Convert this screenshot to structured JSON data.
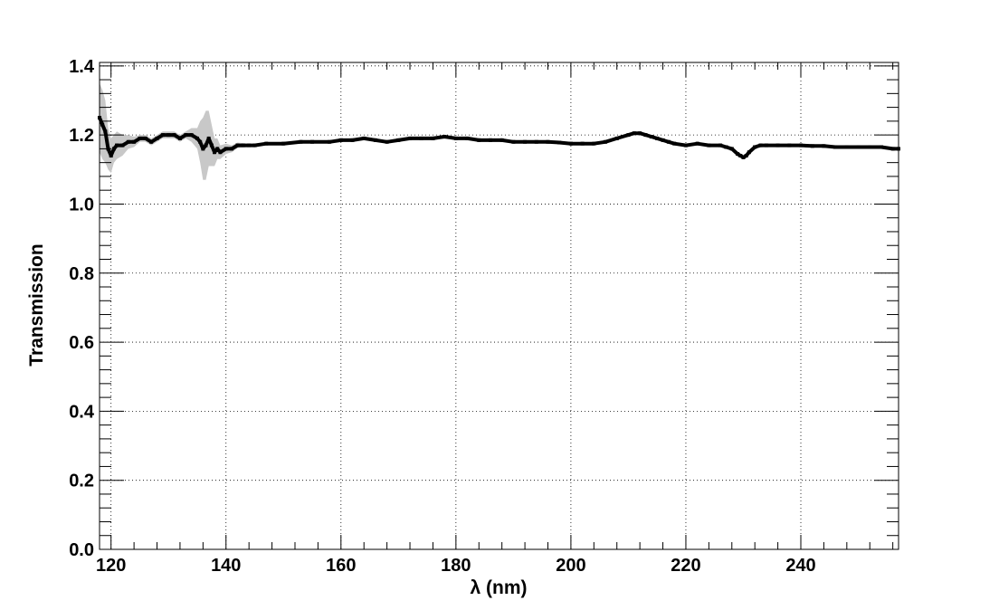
{
  "chart_data": {
    "type": "line",
    "title": "",
    "xlabel": "λ (nm)",
    "ylabel": "Transmission",
    "xlim": [
      118,
      257
    ],
    "ylim": [
      0,
      1.41
    ],
    "x_ticks": [
      "120",
      "140",
      "160",
      "180",
      "200",
      "220",
      "240"
    ],
    "y_ticks": [
      "0.0",
      "0.2",
      "0.4",
      "0.6",
      "0.8",
      "1.0",
      "1.2",
      "1.4"
    ],
    "grid": true,
    "legend": "none",
    "colors": {
      "data": "#000000",
      "error_band": "#c8c8c8"
    },
    "series": [
      {
        "x": [
          118,
          118.5,
          119,
          119.5,
          120,
          120.5,
          121,
          122,
          123,
          124,
          125,
          126,
          127,
          128,
          129,
          130,
          131,
          132,
          133,
          134,
          135,
          135.5,
          136,
          136.5,
          137,
          137.5,
          138,
          138.5,
          139,
          140,
          141,
          142,
          143,
          144,
          145,
          147,
          150,
          153,
          155,
          158,
          160,
          162,
          164,
          166,
          168,
          170,
          172,
          174,
          176,
          178,
          180,
          182,
          184,
          186,
          188,
          190,
          192,
          194,
          196,
          198,
          200,
          202,
          204,
          206,
          208,
          210,
          211,
          212,
          213,
          214,
          215,
          216,
          217,
          218,
          220,
          222,
          224,
          226,
          227,
          228,
          229,
          229.5,
          230,
          230.5,
          231,
          232,
          233,
          234,
          236,
          238,
          240,
          242,
          244,
          246,
          248,
          250,
          252,
          254,
          256,
          257
        ],
        "y": [
          1.25,
          1.23,
          1.21,
          1.16,
          1.14,
          1.16,
          1.17,
          1.17,
          1.18,
          1.18,
          1.19,
          1.19,
          1.18,
          1.19,
          1.2,
          1.2,
          1.2,
          1.19,
          1.2,
          1.2,
          1.19,
          1.18,
          1.16,
          1.17,
          1.19,
          1.17,
          1.15,
          1.16,
          1.15,
          1.16,
          1.16,
          1.17,
          1.17,
          1.17,
          1.17,
          1.175,
          1.175,
          1.18,
          1.18,
          1.18,
          1.185,
          1.185,
          1.19,
          1.185,
          1.18,
          1.185,
          1.19,
          1.19,
          1.19,
          1.195,
          1.19,
          1.19,
          1.185,
          1.185,
          1.185,
          1.18,
          1.18,
          1.18,
          1.18,
          1.178,
          1.175,
          1.175,
          1.175,
          1.18,
          1.19,
          1.2,
          1.205,
          1.205,
          1.2,
          1.195,
          1.19,
          1.185,
          1.18,
          1.175,
          1.17,
          1.175,
          1.17,
          1.17,
          1.165,
          1.16,
          1.145,
          1.14,
          1.135,
          1.14,
          1.15,
          1.165,
          1.17,
          1.17,
          1.17,
          1.17,
          1.17,
          1.168,
          1.168,
          1.165,
          1.165,
          1.165,
          1.165,
          1.165,
          1.16,
          1.16
        ],
        "err": [
          0.1,
          0.1,
          0.09,
          0.06,
          0.05,
          0.04,
          0.04,
          0.03,
          0.02,
          0.015,
          0.01,
          0.01,
          0.01,
          0.01,
          0.01,
          0.01,
          0.01,
          0.01,
          0.01,
          0.02,
          0.03,
          0.06,
          0.09,
          0.1,
          0.08,
          0.06,
          0.04,
          0.03,
          0.02,
          0.015,
          0.01,
          0.008,
          0.006,
          0.005,
          0.005,
          0.004,
          0.004,
          0.004,
          0.004,
          0.004,
          0.004,
          0.004,
          0.004,
          0.004,
          0.004,
          0.004,
          0.004,
          0.004,
          0.004,
          0.004,
          0.004,
          0.004,
          0.004,
          0.004,
          0.004,
          0.004,
          0.004,
          0.004,
          0.004,
          0.004,
          0.004,
          0.004,
          0.004,
          0.004,
          0.004,
          0.004,
          0.004,
          0.004,
          0.004,
          0.004,
          0.004,
          0.004,
          0.004,
          0.004,
          0.004,
          0.004,
          0.004,
          0.004,
          0.004,
          0.004,
          0.004,
          0.004,
          0.004,
          0.004,
          0.004,
          0.004,
          0.004,
          0.004,
          0.004,
          0.004,
          0.004,
          0.004,
          0.004,
          0.004,
          0.004,
          0.004,
          0.004,
          0.004,
          0.004,
          0.004
        ]
      }
    ]
  }
}
